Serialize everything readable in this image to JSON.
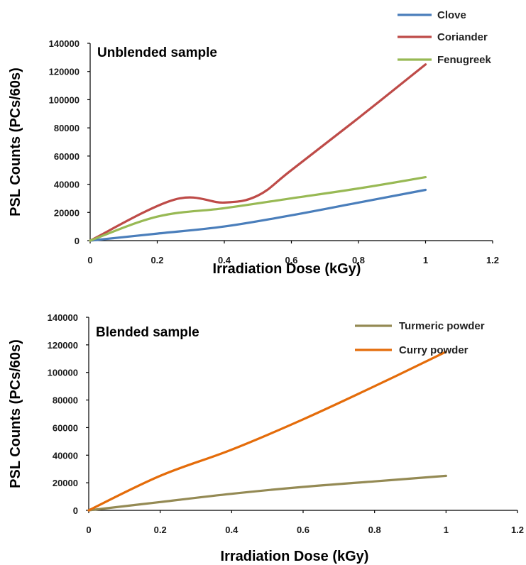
{
  "chart_data": [
    {
      "type": "line",
      "title": "Unblended sample",
      "xlabel": "Irradiation Dose (kGy)",
      "ylabel": "PSL Counts (PCs/60s)",
      "xlim": [
        0,
        1.2
      ],
      "ylim": [
        0,
        140000
      ],
      "x_ticks": [
        "0",
        "0.2",
        "0.4",
        "0.6",
        "0.8",
        "1",
        "1.2"
      ],
      "y_ticks": [
        "0",
        "20000",
        "40000",
        "60000",
        "80000",
        "100000",
        "120000",
        "140000"
      ],
      "grid": false,
      "legend_position": "top-right",
      "series": [
        {
          "name": "Clove",
          "color": "#4a7ebb",
          "x": [
            0,
            0.2,
            0.4,
            0.6,
            0.8,
            1
          ],
          "y": [
            0,
            5000,
            10000,
            18000,
            27000,
            36000
          ]
        },
        {
          "name": "Coriander",
          "color": "#be4b48",
          "x": [
            0,
            0.25,
            0.4,
            0.5,
            0.6,
            0.8,
            1
          ],
          "y": [
            0,
            29000,
            27000,
            32000,
            50000,
            87000,
            125000
          ]
        },
        {
          "name": "Fenugreek",
          "color": "#98b954",
          "x": [
            0,
            0.2,
            0.4,
            0.6,
            0.8,
            1
          ],
          "y": [
            0,
            17000,
            23000,
            30000,
            37000,
            45000
          ]
        }
      ]
    },
    {
      "type": "line",
      "title": "Blended sample",
      "xlabel": "Irradiation Dose (kGy)",
      "ylabel": "PSL Counts (PCs/60s)",
      "xlim": [
        0,
        1.2
      ],
      "ylim": [
        0,
        140000
      ],
      "x_ticks": [
        "0",
        "0.2",
        "0.4",
        "0.6",
        "0.8",
        "1",
        "1.2"
      ],
      "y_ticks": [
        "0",
        "20000",
        "40000",
        "60000",
        "80000",
        "100000",
        "120000",
        "140000"
      ],
      "grid": false,
      "legend_position": "top-right",
      "series": [
        {
          "name": "Turmeric powder",
          "color": "#948a54",
          "x": [
            0,
            0.2,
            0.4,
            0.6,
            0.8,
            1
          ],
          "y": [
            0,
            6000,
            12000,
            17000,
            21000,
            25000
          ]
        },
        {
          "name": "Curry powder",
          "color": "#e46c0a",
          "x": [
            0,
            0.2,
            0.4,
            0.6,
            0.8,
            1
          ],
          "y": [
            0,
            25000,
            44000,
            66000,
            90000,
            115000
          ]
        }
      ]
    }
  ]
}
